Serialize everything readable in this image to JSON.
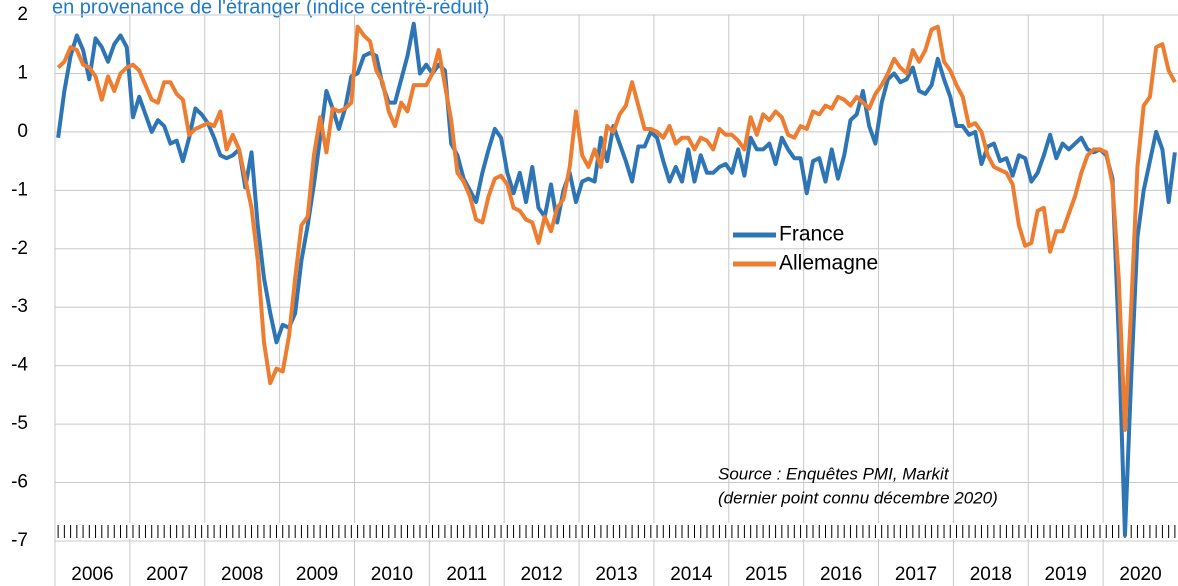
{
  "chart_data": {
    "type": "line",
    "title": "en provenance de l'étranger (indice centré-réduit)",
    "annotation": [
      "Source : Enquêtes PMI, Markit",
      "(dernier point connu décembre 2020)"
    ],
    "year_labels": [
      "2006",
      "2007",
      "2008",
      "2009",
      "2010",
      "2011",
      "2012",
      "2013",
      "2014",
      "2015",
      "2016",
      "2017",
      "2018",
      "2019",
      "2020"
    ],
    "categories": [
      null,
      null,
      null,
      null,
      null,
      null,
      null,
      null,
      null,
      null,
      null,
      null,
      null,
      null,
      null,
      null,
      null,
      null,
      null,
      null,
      null,
      null,
      null,
      null,
      null,
      null,
      null,
      null,
      null,
      null,
      null,
      null,
      null,
      null,
      null,
      null,
      null,
      null,
      null,
      null,
      null,
      null,
      null,
      null,
      null,
      null,
      null,
      null,
      null,
      null,
      null,
      null,
      null,
      null,
      null,
      null,
      null,
      null,
      null,
      null,
      null,
      null,
      null,
      null,
      null,
      null,
      null,
      null,
      null,
      null,
      null,
      null,
      null,
      null,
      null,
      null,
      null,
      null,
      null,
      null,
      null,
      null,
      null,
      null,
      null,
      null,
      null,
      null,
      null,
      null,
      null,
      null,
      null,
      null,
      null,
      null,
      null,
      null,
      null,
      null,
      null,
      null,
      null,
      null,
      null,
      null,
      null,
      null,
      null,
      null,
      null,
      null,
      null,
      null,
      null,
      null,
      null,
      null,
      null,
      null,
      null,
      null,
      null,
      null,
      null,
      null,
      null,
      null,
      null,
      null,
      null,
      null,
      null,
      null,
      null,
      null,
      null,
      null,
      null,
      null,
      null,
      null,
      null,
      null,
      null,
      null,
      null,
      null,
      null,
      null,
      null,
      null,
      null,
      null,
      null,
      null,
      null,
      null,
      null,
      null,
      null,
      null,
      null,
      null,
      null,
      null,
      null,
      null,
      null,
      null,
      null,
      null,
      null,
      null,
      null,
      null,
      null,
      null,
      null,
      null
    ],
    "ylim": [
      -7,
      2
    ],
    "yticks": [
      -7,
      -6,
      -5,
      -4,
      -3,
      -2,
      -1,
      0,
      1,
      2
    ],
    "grid": true,
    "legend": "center",
    "series": [
      {
        "name": "France",
        "color": "#2e75b6",
        "values": [
          -0.1,
          0.7,
          1.3,
          1.65,
          1.4,
          0.9,
          1.6,
          1.45,
          1.2,
          1.5,
          1.65,
          1.45,
          0.25,
          0.6,
          0.3,
          0.0,
          0.2,
          0.1,
          -0.2,
          -0.15,
          -0.5,
          -0.1,
          0.4,
          0.3,
          0.15,
          -0.1,
          -0.4,
          -0.45,
          -0.4,
          -0.3,
          -0.95,
          -0.35,
          -1.6,
          -2.5,
          -3.1,
          -3.6,
          -3.3,
          -3.35,
          -3.1,
          -2.2,
          -1.6,
          -0.9,
          -0.1,
          0.7,
          0.4,
          0.05,
          0.4,
          0.95,
          1.0,
          1.3,
          1.35,
          1.3,
          0.8,
          0.5,
          0.5,
          0.9,
          1.3,
          1.85,
          1.0,
          1.15,
          1.0,
          1.15,
          1.05,
          -0.2,
          -0.4,
          -0.8,
          -1.0,
          -1.2,
          -0.7,
          -0.3,
          0.05,
          -0.1,
          -0.7,
          -1.05,
          -0.7,
          -1.2,
          -0.6,
          -1.3,
          -1.45,
          -0.9,
          -1.55,
          -1.0,
          -0.7,
          -1.2,
          -0.85,
          -0.8,
          -0.85,
          -0.1,
          -0.5,
          0.1,
          -0.2,
          -0.5,
          -0.85,
          -0.25,
          -0.25,
          0.0,
          -0.1,
          -0.5,
          -0.85,
          -0.6,
          -0.85,
          -0.3,
          -0.85,
          -0.4,
          -0.7,
          -0.7,
          -0.6,
          -0.55,
          -0.7,
          -0.3,
          -0.75,
          -0.1,
          -0.3,
          -0.3,
          -0.2,
          -0.55,
          -0.1,
          -0.3,
          -0.45,
          -0.45,
          -1.05,
          -0.5,
          -0.45,
          -0.85,
          -0.3,
          -0.8,
          -0.4,
          0.2,
          0.3,
          0.7,
          0.1,
          -0.2,
          0.5,
          0.9,
          1.0,
          0.85,
          0.9,
          1.1,
          0.7,
          0.65,
          0.8,
          1.25,
          0.9,
          0.6,
          0.1,
          0.1,
          -0.05,
          0.0,
          -0.55,
          -0.25,
          -0.2,
          -0.5,
          -0.45,
          -0.75,
          -0.4,
          -0.45,
          -0.85,
          -0.7,
          -0.4,
          -0.05,
          -0.45,
          -0.2,
          -0.3,
          -0.2,
          -0.1,
          -0.3,
          -0.35,
          -0.3,
          -0.4,
          -0.8,
          -3.5,
          -6.9,
          -4.2,
          -1.8,
          -1.0,
          -0.5,
          0.0,
          -0.3,
          -1.2,
          -0.35
        ]
      },
      {
        "name": "Allemagne",
        "color": "#ed7d31",
        "values": [
          1.1,
          1.2,
          1.45,
          1.4,
          1.15,
          1.1,
          0.95,
          0.55,
          0.95,
          0.7,
          1.0,
          1.1,
          1.15,
          1.05,
          0.8,
          0.55,
          0.5,
          0.85,
          0.85,
          0.65,
          0.55,
          -0.05,
          0.05,
          0.1,
          0.15,
          0.1,
          0.35,
          -0.3,
          -0.05,
          -0.3,
          -0.8,
          -1.3,
          -2.2,
          -3.6,
          -4.3,
          -4.05,
          -4.1,
          -3.5,
          -2.5,
          -1.6,
          -1.45,
          -0.4,
          0.25,
          -0.35,
          0.4,
          0.35,
          0.4,
          0.5,
          1.8,
          1.65,
          1.55,
          1.05,
          0.85,
          0.35,
          0.1,
          0.5,
          0.35,
          0.8,
          0.8,
          0.8,
          1.0,
          1.4,
          0.8,
          0.2,
          -0.7,
          -0.85,
          -1.1,
          -1.5,
          -1.55,
          -1.1,
          -0.8,
          -0.75,
          -0.9,
          -1.3,
          -1.35,
          -1.5,
          -1.55,
          -1.9,
          -1.45,
          -1.7,
          -1.3,
          -1.15,
          -0.6,
          0.35,
          -0.4,
          -0.6,
          -0.3,
          -0.6,
          0.1,
          0.0,
          0.3,
          0.45,
          0.85,
          0.45,
          0.05,
          0.05,
          0.0,
          -0.1,
          0.1,
          -0.2,
          -0.1,
          -0.1,
          -0.3,
          -0.1,
          -0.15,
          -0.3,
          0.05,
          -0.05,
          -0.05,
          -0.15,
          -0.3,
          0.25,
          -0.05,
          0.3,
          0.2,
          0.35,
          0.25,
          -0.05,
          -0.1,
          0.1,
          0.05,
          0.35,
          0.3,
          0.45,
          0.4,
          0.6,
          0.55,
          0.45,
          0.6,
          0.5,
          0.4,
          0.65,
          0.8,
          1.0,
          1.25,
          1.1,
          1.0,
          1.4,
          1.2,
          1.4,
          1.75,
          1.8,
          1.2,
          1.05,
          0.8,
          0.6,
          0.1,
          0.15,
          0.0,
          -0.4,
          -0.6,
          -0.65,
          -0.7,
          -0.9,
          -1.6,
          -1.95,
          -1.9,
          -1.35,
          -1.3,
          -2.05,
          -1.7,
          -1.7,
          -1.4,
          -1.1,
          -0.7,
          -0.4,
          -0.3,
          -0.3,
          -0.35,
          -0.9,
          -2.5,
          -5.1,
          -3.0,
          -0.6,
          0.45,
          0.6,
          1.45,
          1.5,
          1.05,
          0.85
        ]
      }
    ]
  }
}
